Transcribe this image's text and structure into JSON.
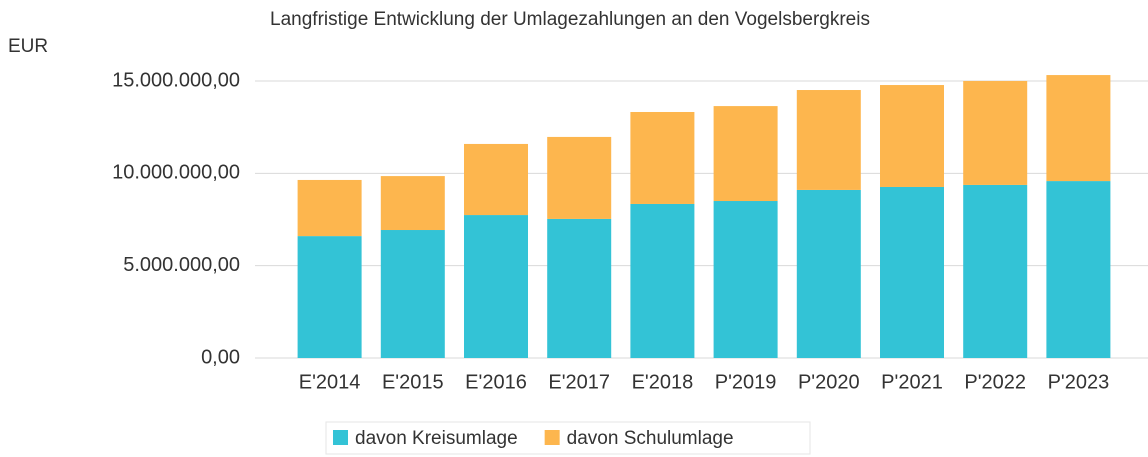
{
  "chart_data": {
    "type": "stacked_bar",
    "title": "Langfristige Entwicklung der Umlagezahlungen an den Vogelsbergkreis",
    "y_label": "EUR",
    "categories": [
      "E'2014",
      "E'2015",
      "E'2016",
      "E'2017",
      "E'2018",
      "P'2019",
      "P'2020",
      "P'2021",
      "P'2022",
      "P'2023"
    ],
    "series": [
      {
        "name": "davon Kreisumlage",
        "color": "#33c3d6",
        "values": [
          6600000,
          6930000,
          7740000,
          7530000,
          8340000,
          8500000,
          9100000,
          9260000,
          9370000,
          9580000
        ]
      },
      {
        "name": "davon Schulumlage",
        "color": "#fdb64e",
        "values": [
          3040000,
          2920000,
          3850000,
          4440000,
          4980000,
          5140000,
          5410000,
          5520000,
          5630000,
          5740000
        ]
      }
    ],
    "ylim": [
      0,
      16000000
    ],
    "yticks": [
      {
        "value": 0,
        "label": "0,00"
      },
      {
        "value": 5000000,
        "label": "5.000.000,00"
      },
      {
        "value": 10000000,
        "label": "10.000.000,00"
      },
      {
        "value": 15000000,
        "label": "15.000.000,00"
      }
    ],
    "grid": true,
    "legend": "bottom"
  }
}
